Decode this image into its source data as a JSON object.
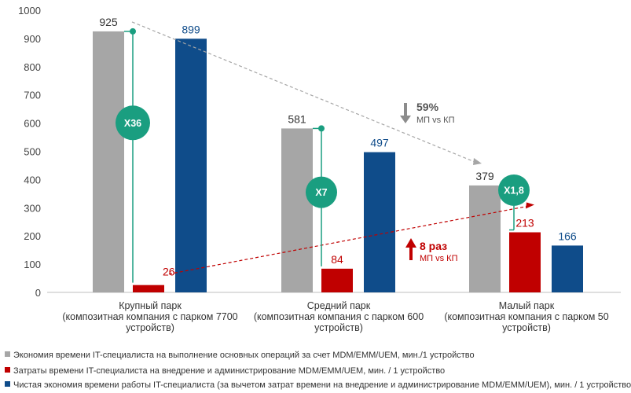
{
  "chart_data": {
    "type": "bar",
    "categories": [
      [
        "Крупный парк",
        "(композитная компания с парком 7700",
        "устройств)"
      ],
      [
        "Средний парк",
        "(композитная компания с парком 600",
        "устройств)"
      ],
      [
        "Малый парк",
        "(композитная компания с парком 50",
        "устройств)"
      ]
    ],
    "series": [
      {
        "name": "Экономия времени IT-специалиста на выполнение основных операций за счет MDM/EMM/UEM, мин./1 устройство",
        "color": "#a6a6a6",
        "label_color": "#333333",
        "values": [
          925,
          581,
          379
        ]
      },
      {
        "name": "Затраты времени IT-специалиста на внедрение и администрирование MDM/EMM/UEM, мин. / 1 устройство",
        "color": "#c00000",
        "label_color": "#c00000",
        "values": [
          26,
          84,
          213
        ]
      },
      {
        "name": "Чистая экономия времени работы IT-специалиста (за вычетом затрат времени на внедрение и администрирование MDM/EMM/UEM), мин. / 1 устройство",
        "color": "#0f4c8a",
        "label_color": "#0f4c8a",
        "values": [
          899,
          497,
          166
        ]
      }
    ],
    "ylim": [
      0,
      1000
    ],
    "yticks": [
      0,
      100,
      200,
      300,
      400,
      500,
      600,
      700,
      800,
      900,
      1000
    ],
    "grid": false,
    "legend_position": "bottom",
    "ratio_badges": [
      "X36",
      "X7",
      "X1,8"
    ],
    "badge_color": "#1a9e80",
    "annotations": {
      "savings_drop": {
        "value": "59%",
        "text": "МП vs КП",
        "color": "#7f7f7f"
      },
      "cost_growth": {
        "value": "8 раз",
        "text": "МП vs КП",
        "color": "#c00000"
      }
    }
  }
}
